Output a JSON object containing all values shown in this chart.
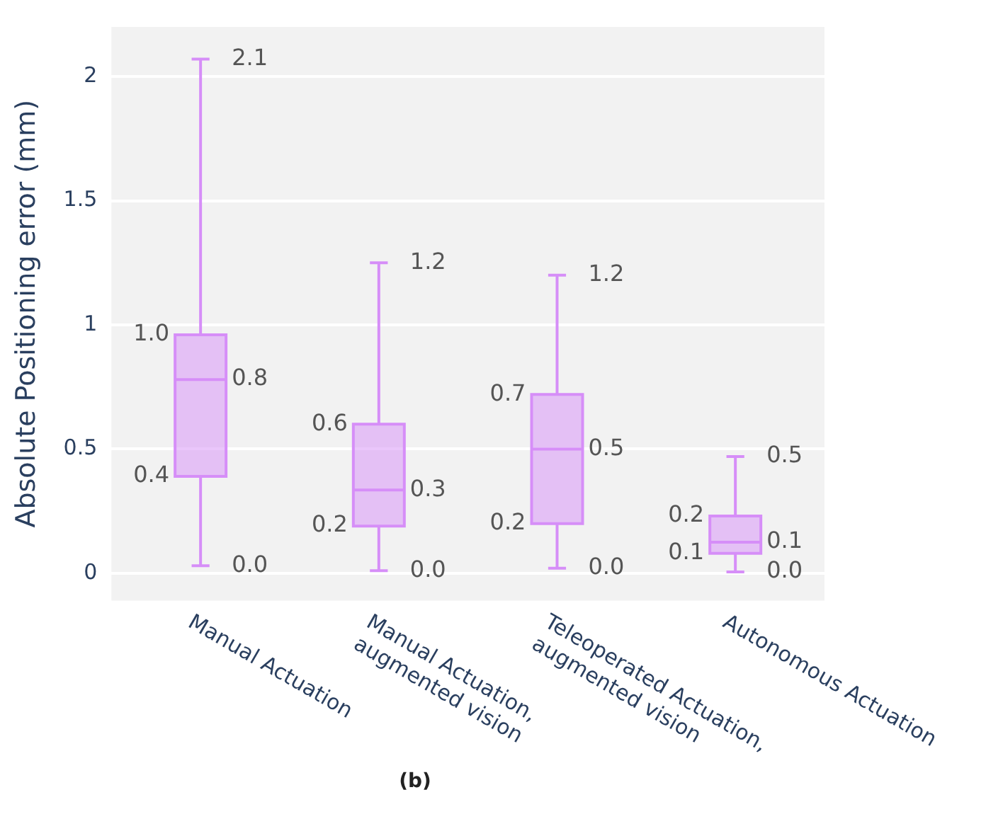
{
  "chart_data": {
    "type": "box",
    "title": "(b)",
    "ylabel": "Absolute Positioning error (mm)",
    "categories": [
      "Manual Actuation",
      "Manual Actuation, augmented vision",
      "Teleoperated Actuation, augmented vision",
      "Autonomous Actuation"
    ],
    "series": [
      {
        "color": "#d68ef8",
        "boxes": [
          {
            "low": 0.03,
            "q1": 0.39,
            "median": 0.78,
            "q3": 0.96,
            "high": 2.07
          },
          {
            "low": 0.01,
            "q1": 0.19,
            "median": 0.335,
            "q3": 0.6,
            "high": 1.25
          },
          {
            "low": 0.02,
            "q1": 0.2,
            "median": 0.5,
            "q3": 0.72,
            "high": 1.2
          },
          {
            "low": 0.005,
            "q1": 0.08,
            "median": 0.125,
            "q3": 0.23,
            "high": 0.47
          }
        ]
      }
    ],
    "ylim": [
      -0.11,
      2.2
    ],
    "yticks": [
      0,
      0.5,
      1,
      1.5,
      2
    ],
    "grid": "y",
    "annotations": [
      "2.1",
      "1.0",
      "0.8",
      "0.4",
      "0.0",
      "1.2",
      "0.6",
      "0.3",
      "0.2",
      "0.0",
      "1.2",
      "0.7",
      "0.5",
      "0.2",
      "0.0",
      "0.5",
      "0.2",
      "0.1",
      "0.1",
      "0.0"
    ]
  }
}
